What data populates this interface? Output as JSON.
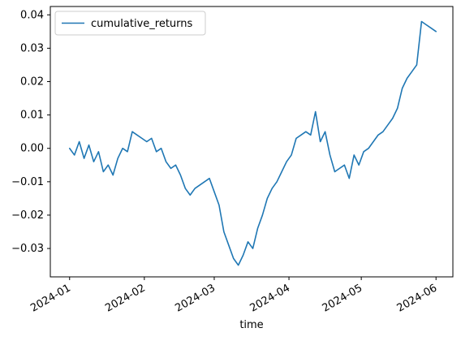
{
  "chart_data": {
    "type": "line",
    "xlabel": "time",
    "ylabel": "",
    "title": "",
    "legend": {
      "position": "top-left",
      "entries": [
        "cumulative_returns"
      ]
    },
    "grid": false,
    "xlim": [
      "2023-12-24",
      "2024-06-08"
    ],
    "ylim": [
      -0.0385,
      0.0425
    ],
    "x_ticks": [
      "2024-01",
      "2024-02",
      "2024-03",
      "2024-04",
      "2024-05",
      "2024-06"
    ],
    "y_ticks": [
      "0.04",
      "0.03",
      "0.02",
      "0.01",
      "0.00",
      "−0.01",
      "−0.02",
      "−0.03"
    ],
    "series": [
      {
        "name": "cumulative_returns",
        "color": "#1f77b4",
        "x": [
          "2024-01-01",
          "2024-01-03",
          "2024-01-05",
          "2024-01-07",
          "2024-01-09",
          "2024-01-11",
          "2024-01-13",
          "2024-01-15",
          "2024-01-17",
          "2024-01-19",
          "2024-01-21",
          "2024-01-23",
          "2024-01-25",
          "2024-01-27",
          "2024-01-29",
          "2024-01-31",
          "2024-02-02",
          "2024-02-04",
          "2024-02-06",
          "2024-02-08",
          "2024-02-10",
          "2024-02-12",
          "2024-02-14",
          "2024-02-16",
          "2024-02-18",
          "2024-02-20",
          "2024-02-22",
          "2024-02-24",
          "2024-02-26",
          "2024-02-28",
          "2024-03-01",
          "2024-03-03",
          "2024-03-05",
          "2024-03-07",
          "2024-03-09",
          "2024-03-11",
          "2024-03-13",
          "2024-03-15",
          "2024-03-17",
          "2024-03-19",
          "2024-03-21",
          "2024-03-23",
          "2024-03-25",
          "2024-03-27",
          "2024-03-29",
          "2024-03-31",
          "2024-04-02",
          "2024-04-04",
          "2024-04-06",
          "2024-04-08",
          "2024-04-10",
          "2024-04-12",
          "2024-04-14",
          "2024-04-16",
          "2024-04-18",
          "2024-04-20",
          "2024-04-22",
          "2024-04-24",
          "2024-04-26",
          "2024-04-28",
          "2024-04-30",
          "2024-05-02",
          "2024-05-04",
          "2024-05-06",
          "2024-05-08",
          "2024-05-10",
          "2024-05-12",
          "2024-05-14",
          "2024-05-16",
          "2024-05-18",
          "2024-05-20",
          "2024-05-22",
          "2024-05-24",
          "2024-05-26",
          "2024-05-28",
          "2024-05-30",
          "2024-06-01"
        ],
        "values": [
          0.0,
          -0.002,
          0.002,
          -0.003,
          0.001,
          -0.004,
          -0.001,
          -0.007,
          -0.005,
          -0.008,
          -0.003,
          0.0,
          -0.001,
          0.005,
          0.004,
          0.003,
          0.002,
          0.003,
          -0.001,
          0.0,
          -0.004,
          -0.006,
          -0.005,
          -0.008,
          -0.012,
          -0.014,
          -0.012,
          -0.011,
          -0.01,
          -0.009,
          -0.013,
          -0.017,
          -0.025,
          -0.029,
          -0.033,
          -0.035,
          -0.032,
          -0.028,
          -0.03,
          -0.024,
          -0.02,
          -0.015,
          -0.012,
          -0.01,
          -0.007,
          -0.004,
          -0.002,
          0.003,
          0.004,
          0.005,
          0.004,
          0.011,
          0.002,
          0.005,
          -0.002,
          -0.007,
          -0.006,
          -0.005,
          -0.009,
          -0.002,
          -0.005,
          -0.001,
          0.0,
          0.002,
          0.004,
          0.005,
          0.007,
          0.009,
          0.012,
          0.018,
          0.021,
          0.023,
          0.025,
          0.038,
          0.037,
          0.036,
          0.035
        ]
      }
    ]
  }
}
